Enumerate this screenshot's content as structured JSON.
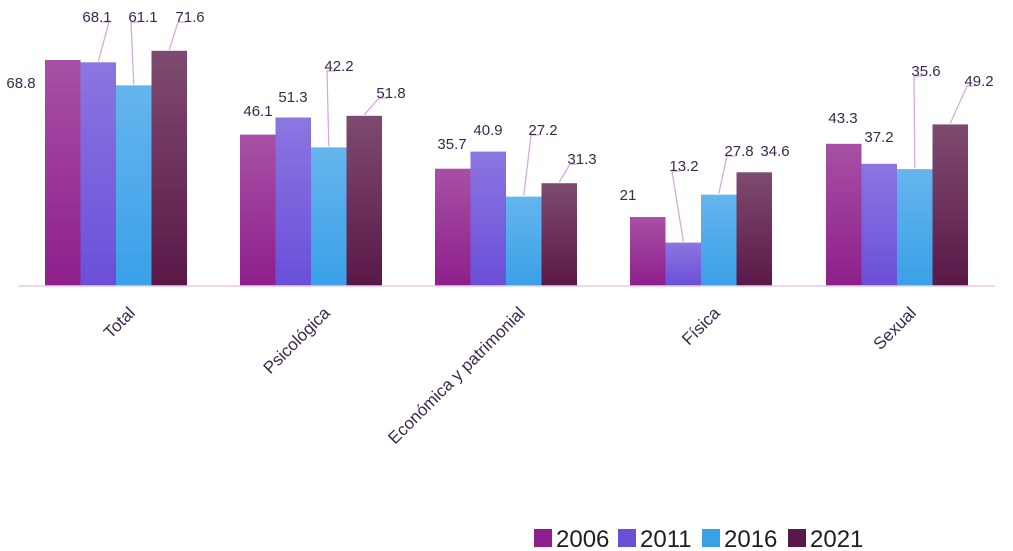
{
  "chart_data": {
    "type": "bar",
    "title": "",
    "xlabel": "",
    "ylabel": "",
    "ylim": [
      0,
      75
    ],
    "grid": false,
    "legend_position": "bottom-right",
    "categories": [
      "Total",
      "Psicológica",
      "Económica y patrimonial",
      "Física",
      "Sexual"
    ],
    "series": [
      {
        "name": "2006",
        "color": "#8e1f8c",
        "values": [
          68.8,
          46.1,
          35.7,
          21,
          43.3
        ],
        "labels": [
          "68.8",
          "46.1",
          "35.7",
          "21",
          "43.3"
        ]
      },
      {
        "name": "2011",
        "color": "#6a4fd8",
        "values": [
          68.1,
          51.3,
          40.9,
          13.2,
          37.2
        ],
        "labels": [
          "68.1",
          "51.3",
          "40.9",
          "13.2",
          "37.2"
        ]
      },
      {
        "name": "2016",
        "color": "#3aa0e8",
        "values": [
          61.1,
          42.2,
          27.2,
          27.8,
          35.6
        ],
        "labels": [
          "61.1",
          "42.2",
          "27.2",
          "27.8",
          "35.6"
        ]
      },
      {
        "name": "2021",
        "color": "#5a1848",
        "values": [
          71.6,
          51.8,
          31.3,
          34.6,
          49.2
        ],
        "labels": [
          "71.6",
          "51.8",
          "31.3",
          "34.6",
          "49.2"
        ]
      }
    ]
  }
}
